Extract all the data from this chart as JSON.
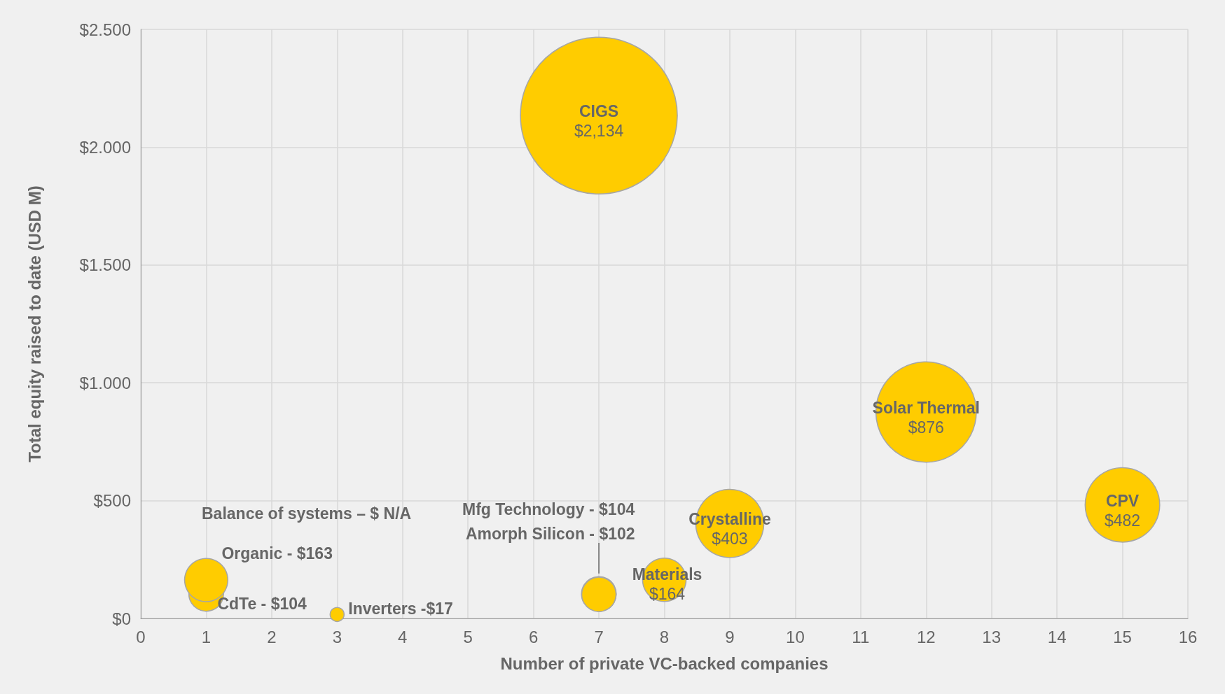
{
  "chart_data": {
    "type": "bubble",
    "xlabel": "Number of private VC-backed companies",
    "ylabel": "Total equity raised to date (USD M)",
    "xlim": [
      0,
      16
    ],
    "xticks": [
      0,
      1,
      2,
      3,
      4,
      5,
      6,
      7,
      8,
      9,
      10,
      11,
      12,
      13,
      14,
      15,
      16
    ],
    "ylim": [
      0,
      2500
    ],
    "yticks": [
      {
        "value": 0,
        "label": "$0"
      },
      {
        "value": 500,
        "label": "$500"
      },
      {
        "value": 1000,
        "label": "$1.000"
      },
      {
        "value": 1500,
        "label": "$1.500"
      },
      {
        "value": 2000,
        "label": "$2.000"
      },
      {
        "value": 2500,
        "label": "$2.500"
      }
    ],
    "grid": true,
    "series": [
      {
        "color": "#ffcc00",
        "x": [
          7
        ],
        "values": [
          2134
        ],
        "sizes": [
          1
        ]
      },
      {
        "color": "#ffcc00",
        "x": [
          12
        ],
        "values": [
          876
        ],
        "sizes": [
          0.41
        ]
      },
      {
        "color": "#ffcc00",
        "x": [
          15
        ],
        "values": [
          482
        ],
        "sizes": [
          0.226
        ]
      },
      {
        "color": "#ffcc00",
        "x": [
          9
        ],
        "values": [
          403
        ],
        "sizes": [
          0.189
        ]
      },
      {
        "color": "#ffcc00",
        "x": [
          8
        ],
        "values": [
          164
        ],
        "sizes": [
          0.077
        ]
      },
      {
        "color": "#ffcc00",
        "x": [
          1
        ],
        "values": [
          104
        ],
        "sizes": [
          0.049
        ]
      },
      {
        "color": "#ffcc00",
        "x": [
          1
        ],
        "values": [
          163
        ],
        "sizes": [
          0.076
        ]
      },
      {
        "color": "#ffcc00",
        "x": [
          3
        ],
        "values": [
          17
        ],
        "sizes": [
          0.008
        ]
      },
      {
        "color": "#ffcc00",
        "x": [
          7
        ],
        "values": [
          104
        ],
        "sizes": [
          0.049
        ]
      },
      {
        "color": "#ffcc00",
        "x": [
          7
        ],
        "values": [
          102
        ],
        "sizes": [
          0.048
        ]
      }
    ],
    "annotations": [
      {
        "text": "CIGS\n$2,134",
        "x": 7,
        "y": 2134
      },
      {
        "text": "Solar Thermal\n$876",
        "x": 12,
        "y": 876
      },
      {
        "text": "CPV\n$482",
        "x": 15,
        "y": 482
      },
      {
        "text": "Crystalline\n$403",
        "x": 9,
        "y": 403
      },
      {
        "text": "Materials\n$164",
        "x": 8,
        "y": 164
      },
      {
        "text": "CdTe - $104",
        "x": 1,
        "y": 104
      },
      {
        "text": "Organic - $163",
        "x": 1,
        "y": 163
      },
      {
        "text": "Inverters -$17",
        "x": 3,
        "y": 17
      },
      "Mfg Technology - $104",
      "Amorph Silicon - $102",
      "Balance of systems – $ N/A"
    ]
  }
}
